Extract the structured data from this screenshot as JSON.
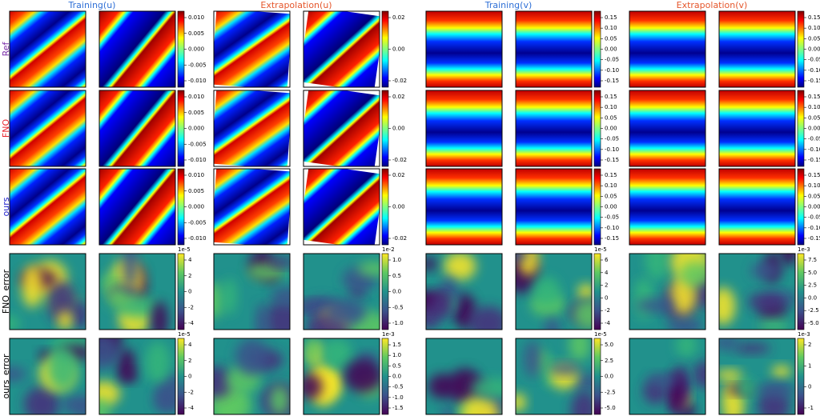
{
  "columns": [
    "Training(u)",
    "Extrapolation(u)",
    "Training(v)",
    "Extrapolation(v)"
  ],
  "rows": [
    {
      "label": "Ref",
      "colorbars": [
        {
          "ticks": [
            "0.010",
            "0.005",
            "0.000",
            "-0.005",
            "-0.010"
          ]
        },
        {
          "ticks": [
            "0.02",
            "0.00",
            "-0.02"
          ]
        },
        {
          "ticks": [
            "0.15",
            "0.10",
            "0.05",
            "0.00",
            "-0.05",
            "-0.10",
            "-0.15"
          ]
        },
        {
          "ticks": [
            "0.15",
            "0.10",
            "0.05",
            "0.00",
            "-0.05",
            "-0.10",
            "-0.15"
          ]
        }
      ]
    },
    {
      "label": "FNO",
      "colorbars": [
        {
          "ticks": [
            "0.010",
            "0.005",
            "0.000",
            "-0.005",
            "-0.010"
          ]
        },
        {
          "ticks": [
            "0.02",
            "0.00",
            "-0.02"
          ]
        },
        {
          "ticks": [
            "0.15",
            "0.10",
            "0.05",
            "0.00",
            "-0.05",
            "-0.10",
            "-0.15"
          ]
        },
        {
          "ticks": [
            "0.15",
            "0.10",
            "0.05",
            "0.00",
            "-0.05",
            "-0.10",
            "-0.15"
          ]
        }
      ]
    },
    {
      "label": "ours",
      "colorbars": [
        {
          "ticks": [
            "0.010",
            "0.005",
            "0.000",
            "-0.005",
            "-0.010"
          ]
        },
        {
          "ticks": [
            "0.02",
            "0.00",
            "-0.02"
          ]
        },
        {
          "ticks": [
            "0.15",
            "0.10",
            "0.05",
            "0.00",
            "-0.05",
            "-0.10",
            "-0.15"
          ]
        },
        {
          "ticks": [
            "0.15",
            "0.10",
            "0.05",
            "0.00",
            "-0.05",
            "-0.10",
            "-0.15"
          ]
        }
      ]
    },
    {
      "label": "FNO_error",
      "colorbars": [
        {
          "offset": "1e-5",
          "ticks": [
            "4",
            "2",
            "0",
            "-2",
            "-4"
          ]
        },
        {
          "offset": "1e-2",
          "ticks": [
            "1.0",
            "0.5",
            "0.0",
            "-0.5",
            "-1.0"
          ]
        },
        {
          "offset": "1e-5",
          "ticks": [
            "6",
            "4",
            "2",
            "0",
            "-2",
            "-4"
          ]
        },
        {
          "offset": "1e-3",
          "ticks": [
            "7.5",
            "5.0",
            "2.5",
            "0.0",
            "-2.5",
            "-5.0"
          ]
        }
      ]
    },
    {
      "label": "ours_error",
      "colorbars": [
        {
          "offset": "1e-5",
          "ticks": [
            "4",
            "2",
            "0",
            "-2",
            "-4"
          ]
        },
        {
          "offset": "1e-3",
          "ticks": [
            "1.5",
            "1.0",
            "0.5",
            "0.0",
            "-0.5",
            "-1.0",
            "-1.5"
          ]
        },
        {
          "offset": "1e-5",
          "ticks": [
            "5.0",
            "2.5",
            "0.0",
            "-2.5",
            "-5.0"
          ]
        },
        {
          "offset": "1e-3",
          "ticks": [
            "2",
            "1",
            "0",
            "-1"
          ]
        }
      ]
    }
  ]
}
